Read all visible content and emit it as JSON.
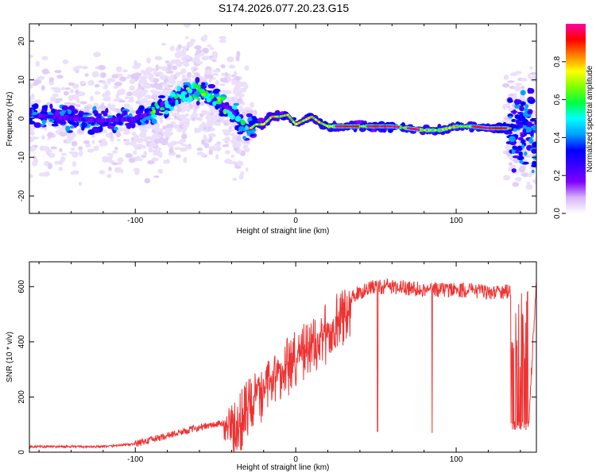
{
  "title": "S174.2026.077.20.23.G15",
  "chart_data": [
    {
      "type": "heatmap",
      "xlabel": "Height of straight line (km)",
      "ylabel": "Frequency (Hz)",
      "xlim": [
        -166,
        150
      ],
      "ylim": [
        -24.5,
        24.5
      ],
      "xticks": [
        -100,
        0,
        100
      ],
      "yticks": [
        -20,
        -10,
        0,
        10,
        20
      ],
      "colorbar": {
        "label": "Normalized spectral amplitude",
        "ticks": [
          0.0,
          0.2,
          0.4,
          0.6,
          0.8
        ],
        "range": [
          0,
          1
        ],
        "colormap": [
          "#ffffff",
          "#d8b4f8",
          "#7f00ff",
          "#3a00ff",
          "#0000ff",
          "#00a0ff",
          "#00ffff",
          "#00ff40",
          "#80ff00",
          "#ffff00",
          "#ff8000",
          "#ff0000",
          "#ff00a0"
        ]
      },
      "ridge": {
        "x": [
          -166,
          -140,
          -120,
          -100,
          -90,
          -82,
          -76,
          -70,
          -62,
          -55,
          -48,
          -42,
          -36,
          -30,
          -28,
          -25,
          -20,
          -15,
          -10,
          -5,
          0,
          5,
          10,
          15,
          20,
          30,
          40,
          50,
          60,
          70,
          80,
          90,
          100,
          110,
          120,
          130,
          134
        ],
        "y": [
          1,
          0,
          -0.5,
          0,
          1.5,
          3,
          5,
          6.5,
          7,
          6,
          4.5,
          2.5,
          0,
          -2.5,
          -2.5,
          -1.5,
          -1.5,
          0.5,
          0.5,
          1,
          -1.5,
          -0.5,
          0.5,
          -1,
          -2,
          -2,
          -2,
          -2,
          -2,
          -2.5,
          -3,
          -3,
          -2,
          -2,
          -2.5,
          -2.5,
          -2.5
        ]
      }
    },
    {
      "type": "line",
      "xlabel": "Height of straight line (km)",
      "ylabel": "SNR (10 * v/v)",
      "xlim": [
        -166,
        150
      ],
      "ylim": [
        0,
        690
      ],
      "xticks": [
        -100,
        0,
        100
      ],
      "yticks": [
        0,
        200,
        400,
        600
      ],
      "color": "#ee3333",
      "trend": {
        "x": [
          -166,
          -120,
          -100,
          -80,
          -60,
          -40,
          -35,
          -30,
          -20,
          -10,
          0,
          10,
          20,
          30,
          40,
          50,
          60,
          80,
          100,
          120,
          134,
          136,
          145,
          150
        ],
        "y": [
          20,
          20,
          30,
          60,
          90,
          110,
          150,
          200,
          260,
          330,
          380,
          430,
          480,
          540,
          580,
          600,
          600,
          590,
          590,
          580,
          580,
          90,
          90,
          620
        ]
      },
      "dips": [
        {
          "x": 51,
          "y": 75
        },
        {
          "x": 85,
          "y": 70
        }
      ]
    }
  ]
}
